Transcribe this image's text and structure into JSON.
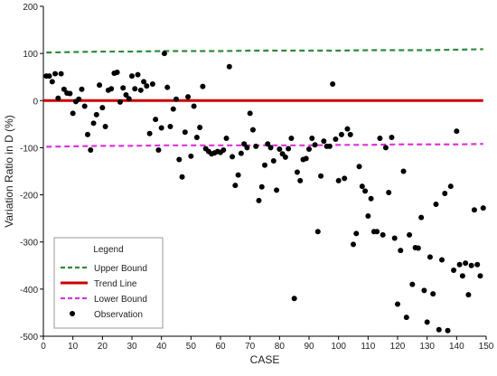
{
  "chart_data": {
    "type": "scatter",
    "title": "",
    "xlabel": "CASE",
    "ylabel": "Variation Ratio in D (%)",
    "xlim": [
      0,
      150
    ],
    "ylim": [
      -500,
      200
    ],
    "xticks": [
      "0",
      "10",
      "20",
      "30",
      "40",
      "50",
      "60",
      "70",
      "80",
      "90",
      "100",
      "110",
      "120",
      "130",
      "140",
      "150"
    ],
    "yticks": [
      "200",
      "100",
      "0",
      "-100",
      "-200",
      "-300",
      "-400",
      "-500"
    ],
    "grid": false,
    "legend": {
      "title": "Legend",
      "placement": "bottom-left",
      "entries": [
        "Upper Bound",
        "Trend Line",
        "Lower Bound",
        "Observation"
      ]
    },
    "colors": {
      "upper_bound": "#2e8b3a",
      "trend_line": "#cc0000",
      "lower_bound": "#dd33dd",
      "observation": "#000000"
    },
    "series": [
      {
        "name": "Upper Bound",
        "style": "dashed",
        "x": [
          1,
          10,
          20,
          30,
          40,
          50,
          60,
          70,
          80,
          90,
          100,
          110,
          120,
          130,
          140,
          149
        ],
        "y": [
          102,
          103,
          104,
          104,
          105,
          105,
          105,
          106,
          106,
          106,
          106,
          107,
          107,
          107,
          108,
          109
        ]
      },
      {
        "name": "Trend Line",
        "style": "solid",
        "x": [
          0,
          149
        ],
        "y": [
          0,
          0
        ]
      },
      {
        "name": "Lower Bound",
        "style": "dashed",
        "x": [
          1,
          10,
          20,
          30,
          40,
          50,
          60,
          70,
          80,
          90,
          100,
          110,
          120,
          130,
          140,
          149
        ],
        "y": [
          -98,
          -97,
          -96,
          -96,
          -95,
          -95,
          -95,
          -95,
          -95,
          -95,
          -94,
          -94,
          -93,
          -93,
          -93,
          -92
        ]
      },
      {
        "name": "Observation",
        "style": "points",
        "points": [
          [
            1,
            52
          ],
          [
            2,
            52
          ],
          [
            3,
            40
          ],
          [
            4,
            57
          ],
          [
            5,
            5
          ],
          [
            6,
            57
          ],
          [
            7,
            24
          ],
          [
            8,
            16
          ],
          [
            9,
            15
          ],
          [
            10,
            -27
          ],
          [
            11,
            -2
          ],
          [
            12,
            3
          ],
          [
            13,
            24
          ],
          [
            14,
            -12
          ],
          [
            15,
            -72
          ],
          [
            16,
            -105
          ],
          [
            17,
            -48
          ],
          [
            18,
            -30
          ],
          [
            19,
            33
          ],
          [
            20,
            -15
          ],
          [
            21,
            -55
          ],
          [
            22,
            22
          ],
          [
            23,
            25
          ],
          [
            24,
            58
          ],
          [
            25,
            60
          ],
          [
            26,
            -3
          ],
          [
            27,
            27
          ],
          [
            28,
            12
          ],
          [
            29,
            4
          ],
          [
            30,
            52
          ],
          [
            31,
            25
          ],
          [
            32,
            55
          ],
          [
            33,
            22
          ],
          [
            34,
            40
          ],
          [
            35,
            31
          ],
          [
            36,
            -70
          ],
          [
            37,
            35
          ],
          [
            38,
            -40
          ],
          [
            39,
            -105
          ],
          [
            40,
            -58
          ],
          [
            41,
            100
          ],
          [
            42,
            28
          ],
          [
            43,
            -55
          ],
          [
            44,
            -18
          ],
          [
            45,
            3
          ],
          [
            46,
            -125
          ],
          [
            47,
            -162
          ],
          [
            48,
            -67
          ],
          [
            49,
            8
          ],
          [
            50,
            -118
          ],
          [
            51,
            -12
          ],
          [
            52,
            -78
          ],
          [
            53,
            -57
          ],
          [
            54,
            30
          ],
          [
            55,
            -102
          ],
          [
            56,
            -108
          ],
          [
            57,
            -113
          ],
          [
            58,
            -111
          ],
          [
            59,
            -108
          ],
          [
            60,
            -110
          ],
          [
            61,
            -105
          ],
          [
            62,
            -80
          ],
          [
            63,
            72
          ],
          [
            64,
            -119
          ],
          [
            65,
            -180
          ],
          [
            66,
            -158
          ],
          [
            67,
            -112
          ],
          [
            68,
            -92
          ],
          [
            69,
            -100
          ],
          [
            70,
            -27
          ],
          [
            71,
            -62
          ],
          [
            72,
            -97
          ],
          [
            73,
            -212
          ],
          [
            74,
            -183
          ],
          [
            75,
            -137
          ],
          [
            76,
            -92
          ],
          [
            77,
            -100
          ],
          [
            78,
            -128
          ],
          [
            79,
            -190
          ],
          [
            80,
            -103
          ],
          [
            81,
            -113
          ],
          [
            82,
            -120
          ],
          [
            83,
            -102
          ],
          [
            84,
            -80
          ],
          [
            85,
            -420
          ],
          [
            86,
            -152
          ],
          [
            87,
            -170
          ],
          [
            88,
            -125
          ],
          [
            89,
            -123
          ],
          [
            90,
            -103
          ],
          [
            91,
            -80
          ],
          [
            92,
            -94
          ],
          [
            93,
            -278
          ],
          [
            94,
            -160
          ],
          [
            95,
            -86
          ],
          [
            96,
            -97
          ],
          [
            97,
            -97
          ],
          [
            98,
            35
          ],
          [
            99,
            -82
          ],
          [
            100,
            -170
          ],
          [
            101,
            -72
          ],
          [
            102,
            -165
          ],
          [
            103,
            -60
          ],
          [
            104,
            -72
          ],
          [
            105,
            -305
          ],
          [
            106,
            -282
          ],
          [
            107,
            -140
          ],
          [
            108,
            -182
          ],
          [
            109,
            -192
          ],
          [
            110,
            -245
          ],
          [
            111,
            -208
          ],
          [
            112,
            -278
          ],
          [
            113,
            -278
          ],
          [
            114,
            -80
          ],
          [
            115,
            -285
          ],
          [
            116,
            -100
          ],
          [
            117,
            -195
          ],
          [
            118,
            -78
          ],
          [
            119,
            -292
          ],
          [
            120,
            -432
          ],
          [
            121,
            -318
          ],
          [
            122,
            -150
          ],
          [
            123,
            -460
          ],
          [
            124,
            -285
          ],
          [
            125,
            -390
          ],
          [
            126,
            -312
          ],
          [
            127,
            -313
          ],
          [
            128,
            -248
          ],
          [
            129,
            -403
          ],
          [
            130,
            -470
          ],
          [
            131,
            -332
          ],
          [
            132,
            -410
          ],
          [
            133,
            -220
          ],
          [
            134,
            -486
          ],
          [
            135,
            -338
          ],
          [
            136,
            -197
          ],
          [
            137,
            -488
          ],
          [
            138,
            -182
          ],
          [
            139,
            -360
          ],
          [
            140,
            -65
          ],
          [
            141,
            -348
          ],
          [
            142,
            -372
          ],
          [
            143,
            -345
          ],
          [
            144,
            -412
          ],
          [
            145,
            -350
          ],
          [
            146,
            -232
          ],
          [
            147,
            -348
          ],
          [
            148,
            -372
          ],
          [
            149,
            -228
          ]
        ]
      }
    ]
  }
}
